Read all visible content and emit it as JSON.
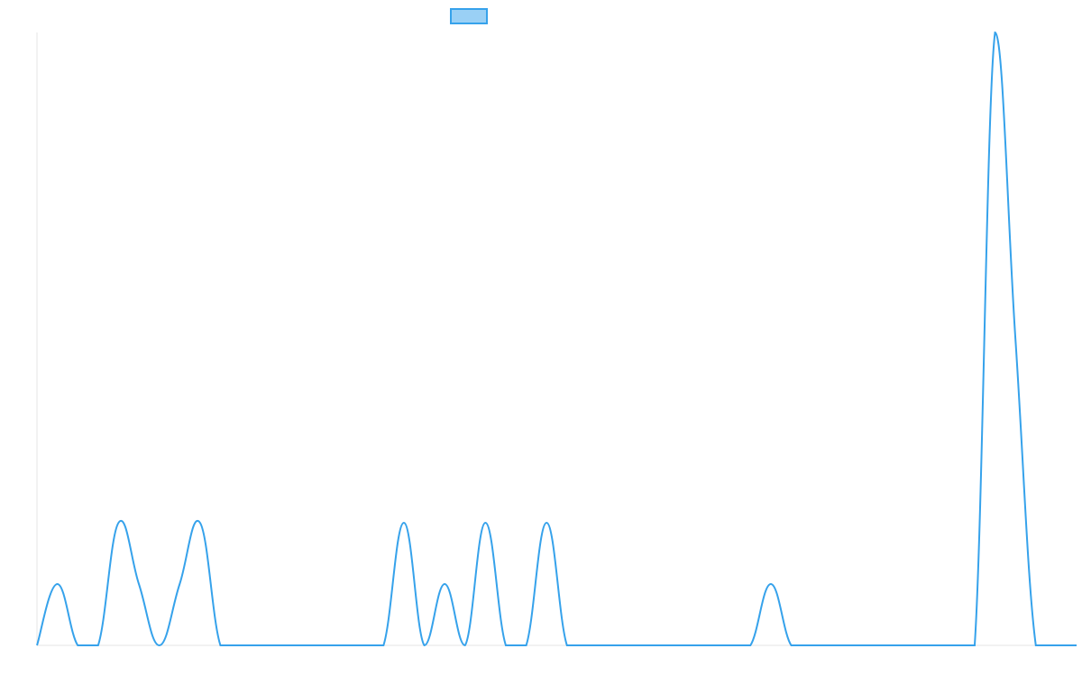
{
  "chart_data": {
    "type": "line",
    "series": [
      {
        "color": "#36a2eb",
        "values": [
          0,
          1,
          0,
          0,
          2,
          1,
          0,
          1,
          2,
          0,
          0,
          0,
          0,
          0,
          0,
          0,
          0,
          0,
          2,
          0,
          1,
          0,
          2,
          0,
          0,
          2,
          0,
          0,
          0,
          0,
          0,
          0,
          0,
          0,
          0,
          0,
          1,
          0,
          0,
          0,
          0,
          0,
          0,
          0,
          0,
          0,
          0,
          10,
          5,
          0,
          0,
          0
        ]
      }
    ],
    "ylim": [
      0,
      10
    ]
  }
}
